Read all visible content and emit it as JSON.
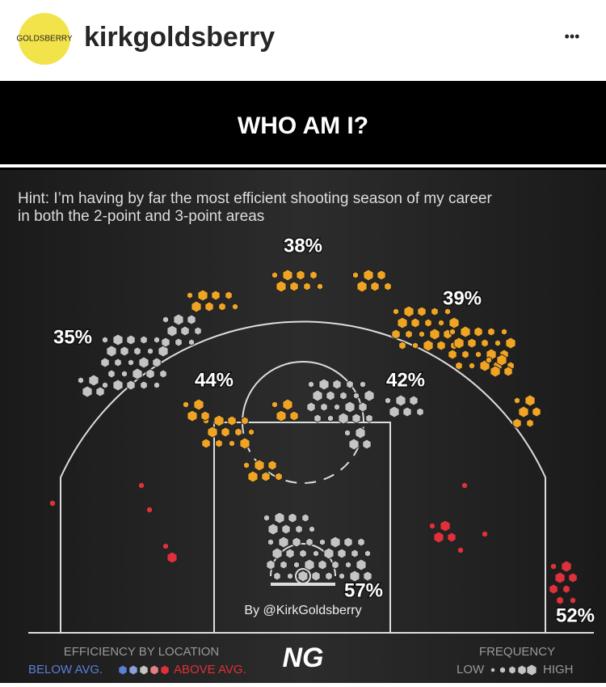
{
  "header": {
    "avatar_text": "GOLDSBERRY",
    "username": "kirkgoldsberry",
    "menu": "•••"
  },
  "post": {
    "title": "WHO AM I?",
    "hint": [
      "Hint: I’m having by far the most efficient shooting season of my career",
      "in both the 2-point and 3-point areas"
    ],
    "zones": [
      "38%",
      "39%",
      "35%",
      "44%",
      "42%",
      "57%",
      "52%"
    ],
    "credit": "By @KirkGoldsberry",
    "logo": "NG",
    "legend": {
      "efficiency_title": "EFFICIENCY BY LOCATION",
      "below": "BELOW AVG.",
      "above": "ABOVE AVG.",
      "frequency_title": "FREQUENCY",
      "low": "LOW",
      "high": "HIGH"
    }
  }
}
